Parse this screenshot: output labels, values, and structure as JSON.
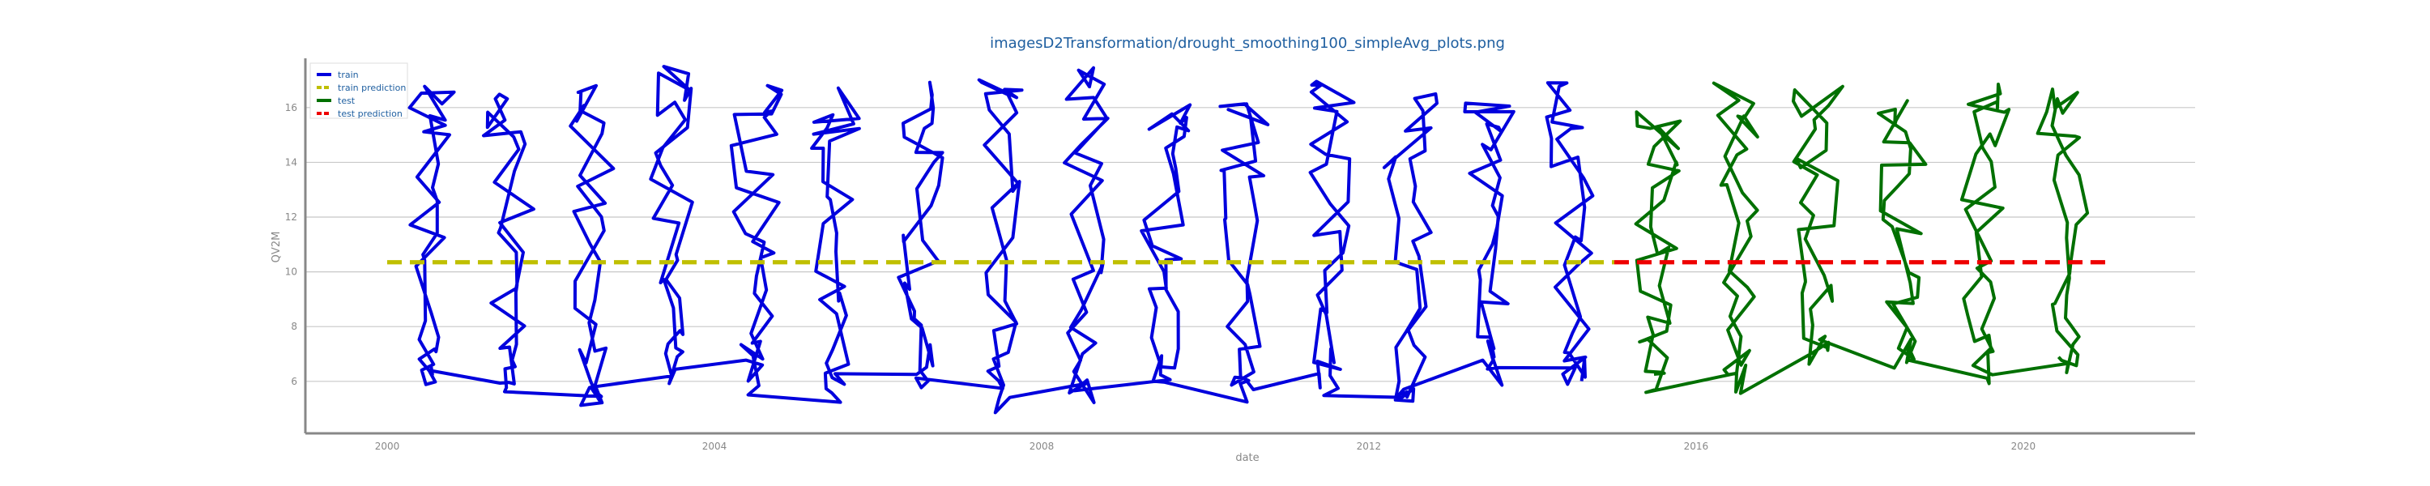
{
  "chart_data": {
    "type": "line",
    "title": "imagesD2Transformation/drought_smoothing100_simpleAvg_plots.png",
    "xlabel": "date",
    "ylabel": "QV2M",
    "xlim": [
      1999,
      2022.1
    ],
    "ylim": [
      4.1,
      17.8
    ],
    "xticks": [
      2000,
      2004,
      2008,
      2012,
      2016,
      2020
    ],
    "yticks": [
      6,
      8,
      10,
      12,
      14,
      16
    ],
    "grid": "horizontal",
    "legend_position": "top-left",
    "prediction_value": 10.35,
    "series": [
      {
        "name": "train",
        "color": "#0000dd",
        "style": "solid",
        "x": [
          2000,
          2015
        ],
        "y": [
          5.0,
          17.1
        ]
      },
      {
        "name": "train prediction",
        "color": "#bfbf00",
        "style": "dashed",
        "x": [
          2000,
          2015
        ],
        "y": [
          10.35,
          10.35
        ]
      },
      {
        "name": "test",
        "color": "#007000",
        "style": "solid",
        "x": [
          2015,
          2021
        ],
        "y": [
          5.8,
          16.6
        ]
      },
      {
        "name": "test prediction",
        "color": "#ee0000",
        "style": "dashed",
        "x": [
          2015,
          2021
        ],
        "y": [
          10.35,
          10.35
        ]
      }
    ]
  }
}
